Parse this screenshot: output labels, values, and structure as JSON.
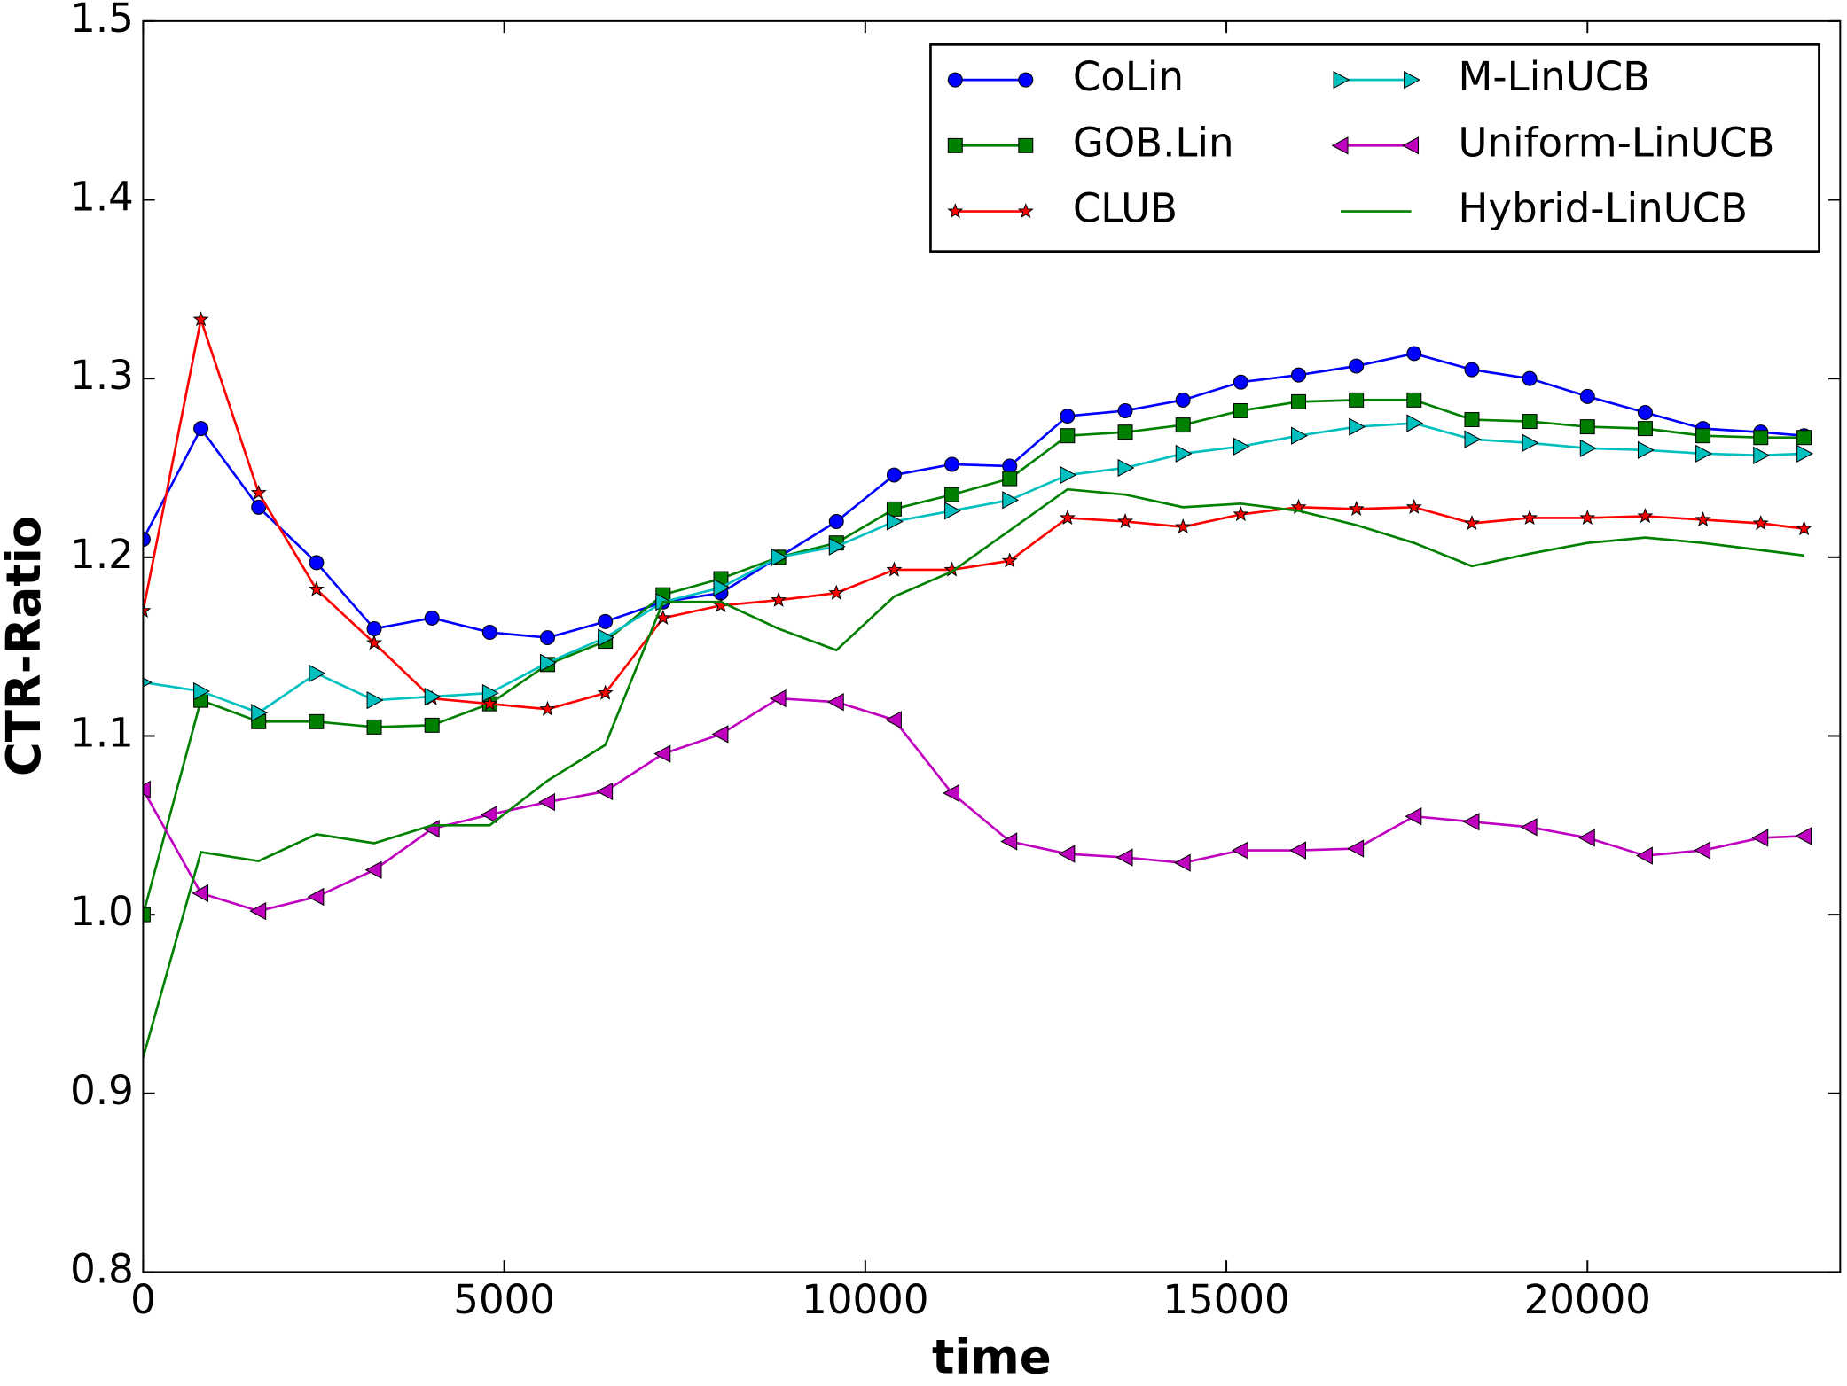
{
  "chart_data": {
    "type": "line",
    "x_label": "time",
    "y_label": "CTR-Ratio",
    "x": [
      0,
      800,
      1600,
      2400,
      3200,
      4000,
      4800,
      5600,
      6400,
      7200,
      8000,
      8800,
      9600,
      10400,
      11200,
      12000,
      12800,
      13600,
      14400,
      15200,
      16000,
      16800,
      17600,
      18400,
      19200,
      20000,
      20800,
      21600,
      22400,
      23000
    ],
    "series": [
      {
        "name": "CoLin",
        "color": "#0000ff",
        "marker": "circle",
        "values": [
          1.21,
          1.272,
          1.228,
          1.197,
          1.16,
          1.166,
          1.158,
          1.155,
          1.164,
          1.175,
          1.18,
          1.2,
          1.22,
          1.246,
          1.252,
          1.251,
          1.279,
          1.282,
          1.288,
          1.298,
          1.302,
          1.307,
          1.314,
          1.305,
          1.3,
          1.29,
          1.281,
          1.272,
          1.27,
          1.268
        ]
      },
      {
        "name": "GOB.Lin",
        "color": "#008000",
        "marker": "square",
        "values": [
          1.0,
          1.12,
          1.108,
          1.108,
          1.105,
          1.106,
          1.118,
          1.14,
          1.153,
          1.179,
          1.188,
          1.2,
          1.208,
          1.227,
          1.235,
          1.244,
          1.268,
          1.27,
          1.274,
          1.282,
          1.287,
          1.288,
          1.288,
          1.277,
          1.276,
          1.273,
          1.272,
          1.268,
          1.267,
          1.267
        ]
      },
      {
        "name": "CLUB",
        "color": "#ff0000",
        "marker": "star",
        "values": [
          1.17,
          1.333,
          1.236,
          1.182,
          1.152,
          1.121,
          1.118,
          1.115,
          1.124,
          1.166,
          1.173,
          1.176,
          1.18,
          1.193,
          1.193,
          1.198,
          1.222,
          1.22,
          1.217,
          1.224,
          1.228,
          1.227,
          1.228,
          1.219,
          1.222,
          1.222,
          1.223,
          1.221,
          1.219,
          1.216
        ]
      },
      {
        "name": "M-LinUCB",
        "color": "#00bfbf",
        "marker": "triangle-right",
        "values": [
          1.13,
          1.125,
          1.113,
          1.135,
          1.12,
          1.122,
          1.124,
          1.141,
          1.155,
          1.175,
          1.183,
          1.2,
          1.206,
          1.22,
          1.226,
          1.232,
          1.246,
          1.25,
          1.258,
          1.262,
          1.268,
          1.273,
          1.275,
          1.266,
          1.264,
          1.261,
          1.26,
          1.258,
          1.257,
          1.258
        ]
      },
      {
        "name": "Uniform-LinUCB",
        "color": "#bf00bf",
        "marker": "triangle-left",
        "values": [
          1.07,
          1.012,
          1.002,
          1.01,
          1.025,
          1.048,
          1.056,
          1.063,
          1.069,
          1.09,
          1.101,
          1.121,
          1.119,
          1.109,
          1.068,
          1.041,
          1.034,
          1.032,
          1.029,
          1.036,
          1.036,
          1.037,
          1.055,
          1.052,
          1.049,
          1.043,
          1.033,
          1.036,
          1.043,
          1.044
        ]
      },
      {
        "name": "Hybrid-LinUCB",
        "color": "#008000",
        "marker": "none",
        "values": [
          0.92,
          1.035,
          1.03,
          1.045,
          1.04,
          1.05,
          1.05,
          1.075,
          1.095,
          1.175,
          1.175,
          1.16,
          1.148,
          1.178,
          1.192,
          1.215,
          1.238,
          1.235,
          1.228,
          1.23,
          1.226,
          1.218,
          1.208,
          1.195,
          1.202,
          1.208,
          1.211,
          1.208,
          1.204,
          1.201
        ]
      }
    ],
    "xlim": [
      0,
      23500
    ],
    "ylim": [
      0.8,
      1.5
    ],
    "xticks": [
      0,
      5000,
      10000,
      15000,
      20000
    ],
    "yticks": [
      0.8,
      0.9,
      {
        "value": 1,
        "label": "1.0"
      },
      1.1,
      1.2,
      1.3,
      1.4,
      1.5
    ],
    "legend": "upper right",
    "legend_columns": 2,
    "grid": false
  }
}
